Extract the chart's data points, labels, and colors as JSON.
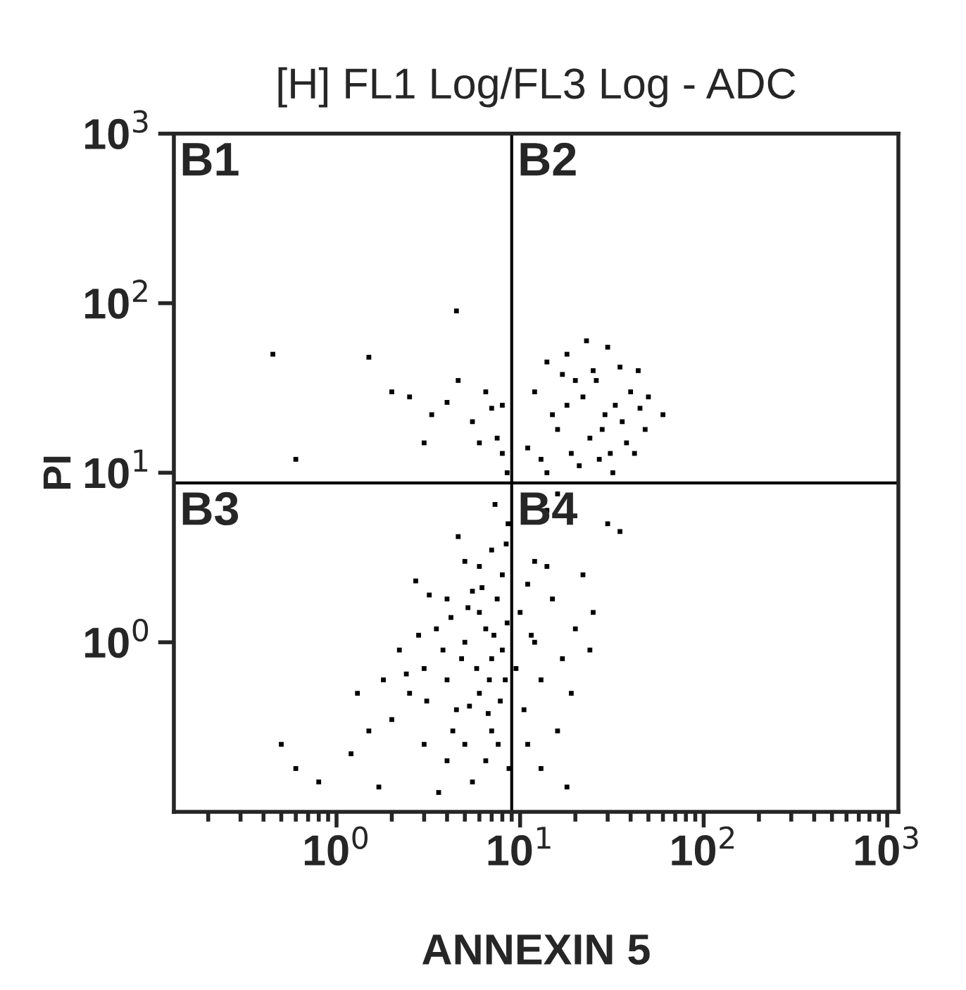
{
  "chart_data": {
    "type": "scatter",
    "title": "[H] FL1 Log/FL3 Log - ADC",
    "xlabel": "ANNEXIN 5",
    "ylabel": "PI",
    "log": "xy",
    "xlim": [
      0.13,
      1150
    ],
    "ylim": [
      0.1,
      1000
    ],
    "xticks": [
      {
        "value": 1,
        "label": "10$^{0}$"
      },
      {
        "value": 10,
        "label": "10$^{1}$"
      },
      {
        "value": 100,
        "label": "10$^{2}$"
      },
      {
        "value": 1000,
        "label": "10$^{3}$"
      }
    ],
    "yticks": [
      {
        "value": 1,
        "label": "10$^{0}$"
      },
      {
        "value": 10,
        "label": "10$^{1}$"
      },
      {
        "value": 100,
        "label": "10$^{2}$"
      },
      {
        "value": 1000,
        "label": "10$^{3}$"
      }
    ],
    "grid": false,
    "marker": "square",
    "legend": false,
    "ref_lines": [
      {
        "axis": "x",
        "value": 9,
        "color": "#000000"
      },
      {
        "axis": "y",
        "value": 8.7,
        "color": "#000000"
      }
    ],
    "annotations": [
      "B1",
      "B2",
      "B3",
      "B4"
    ],
    "series": [
      {
        "color": "#000000",
        "x": [
          12,
          14,
          15,
          18,
          20,
          22,
          25,
          28,
          30,
          33,
          35,
          38,
          40,
          11,
          13,
          16,
          19,
          21,
          24,
          27,
          29,
          32,
          36,
          42,
          45,
          50,
          18,
          23,
          26,
          31,
          14,
          17,
          48,
          44,
          60,
          0.45,
          0.6,
          1.5,
          2,
          2.5,
          3,
          4,
          4.5,
          4.6,
          5.5,
          6,
          7,
          7.5,
          8,
          8.5,
          6.5,
          8,
          3.3,
          5,
          6,
          7,
          4,
          5.5,
          6.5,
          7.5,
          8,
          3.5,
          4.5,
          3,
          2.5,
          2,
          6,
          7,
          5,
          4,
          3,
          8,
          8.5,
          6,
          7,
          5,
          4,
          3.2,
          2.8,
          2.2,
          1.8,
          1.5,
          1.2,
          0.5,
          0.6,
          0.8,
          1.7,
          3.6,
          5.5,
          6.5,
          7.8,
          8.3,
          4.8,
          5.8,
          6.8,
          3.8,
          4.2,
          5.2,
          6.2,
          7.2,
          8.4,
          8.6,
          7.3,
          4.6,
          2.7,
          1.3,
          3.1,
          2.4,
          6.7,
          5.3,
          7.6,
          8.7,
          4.3,
          10,
          11,
          12,
          13,
          15,
          17,
          20,
          22,
          10.5,
          11,
          13,
          16,
          18,
          12,
          14,
          25,
          11.5,
          19,
          24,
          30,
          35,
          14,
          16,
          9.5
        ],
        "values": [
          30,
          45,
          22,
          50,
          35,
          28,
          40,
          18,
          55,
          25,
          42,
          15,
          30,
          14,
          12,
          18,
          13,
          11,
          16,
          12,
          22,
          10,
          20,
          13,
          24,
          28,
          25,
          60,
          35,
          13,
          10,
          38,
          18,
          40,
          22,
          50,
          12,
          48,
          30,
          28,
          15,
          26,
          90,
          35,
          20,
          15,
          24,
          16,
          25,
          10,
          30,
          13,
          22,
          1,
          1.5,
          0.8,
          0.6,
          2,
          1.2,
          1.8,
          0.9,
          1.2,
          0.4,
          0.7,
          0.5,
          0.35,
          0.5,
          0.3,
          0.25,
          0.2,
          0.25,
          2.5,
          1.3,
          2.8,
          3.5,
          3,
          1.8,
          1.9,
          1.1,
          0.9,
          0.6,
          0.3,
          0.22,
          0.25,
          0.18,
          0.15,
          0.14,
          0.13,
          0.15,
          0.2,
          0.45,
          0.6,
          0.8,
          0.7,
          0.6,
          0.9,
          1.4,
          1.6,
          2.1,
          1.1,
          3.8,
          5,
          6.5,
          4.2,
          2.3,
          0.5,
          0.45,
          0.65,
          0.38,
          0.42,
          0.25,
          0.18,
          0.3,
          1.5,
          2.2,
          1,
          0.6,
          1.8,
          0.8,
          1.2,
          2.5,
          0.4,
          0.25,
          0.18,
          0.3,
          0.14,
          3,
          2.8,
          1.5,
          1.1,
          0.5,
          0.9,
          5,
          4.5,
          6,
          7.5,
          0.7
        ]
      }
    ]
  }
}
